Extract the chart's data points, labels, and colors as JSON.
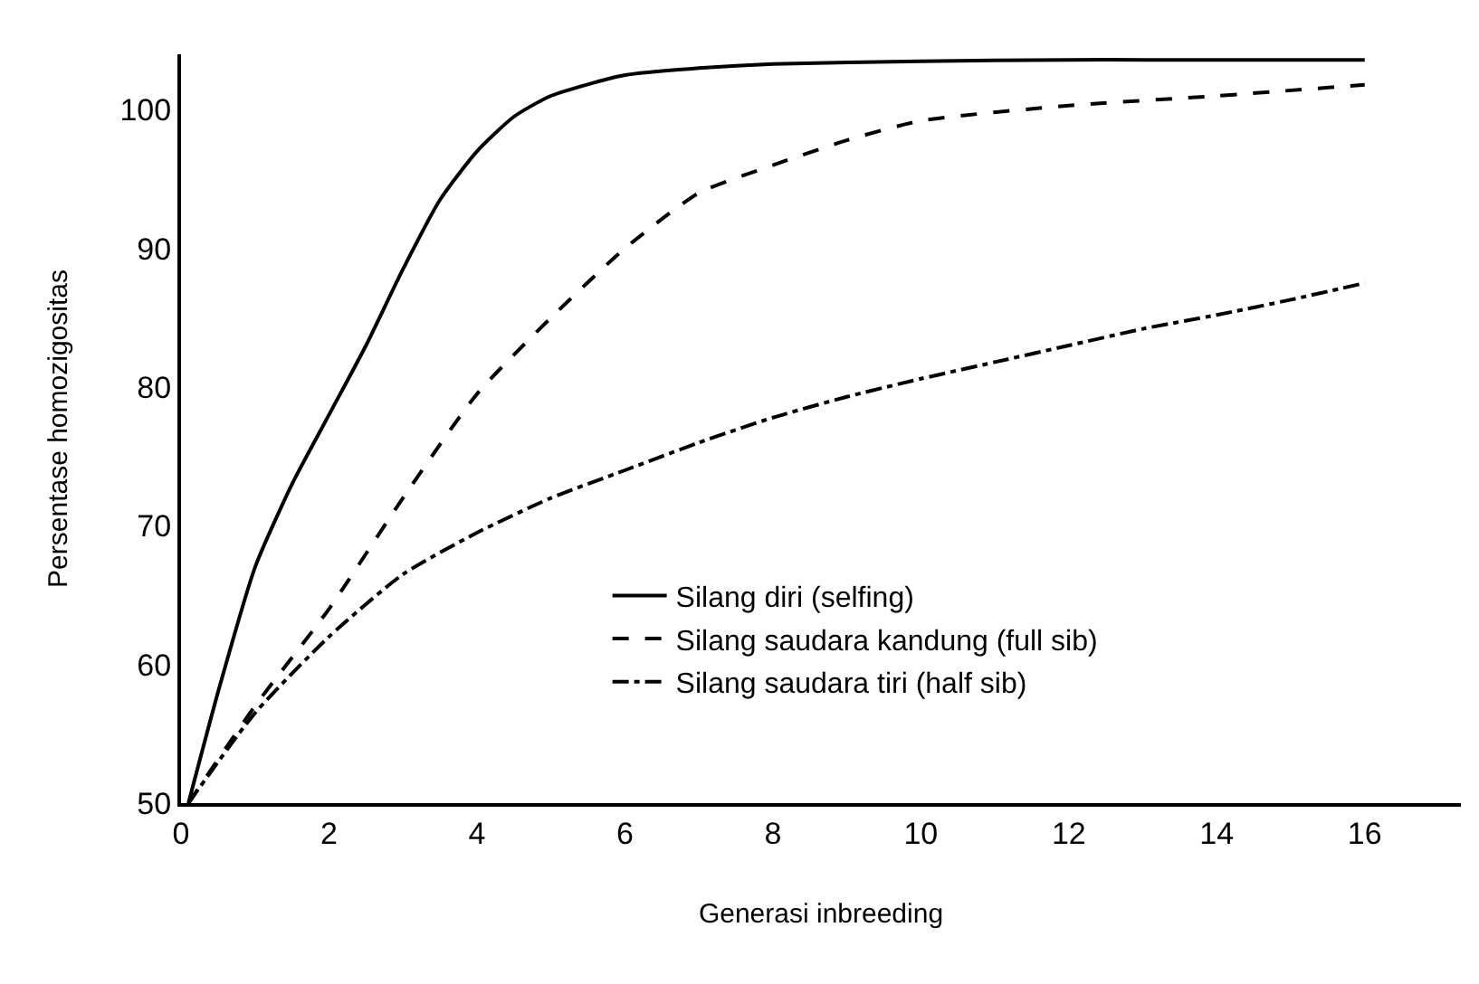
{
  "chart_data": {
    "type": "line",
    "xlabel": "Generasi inbreeding",
    "ylabel": "Persentase homozigositas",
    "xlim": [
      0,
      17.3
    ],
    "xticks": [
      0,
      2,
      4,
      6,
      8,
      10,
      12,
      14,
      16
    ],
    "ylim": [
      50,
      104
    ],
    "yticks": [
      50,
      60,
      70,
      80,
      90,
      100
    ],
    "grid": false,
    "legend": "bottom right",
    "series": [
      {
        "name": "Silang diri (selfing)",
        "color": "#000000",
        "line_style": "solid",
        "x": [
          0.1,
          0.5,
          1,
          1.5,
          2,
          2.5,
          3,
          3.5,
          4,
          4.5,
          5,
          6,
          7,
          8,
          10,
          12,
          13,
          16
        ],
        "values": [
          50,
          58,
          67,
          73,
          78,
          83,
          88.5,
          93.5,
          97,
          99.5,
          101,
          102.5,
          103,
          103.3,
          103.5,
          103.6,
          103.6,
          103.6
        ]
      },
      {
        "name": "Silang saudara kandung (full sib)",
        "color": "#000000",
        "line_style": "dashed",
        "x": [
          0.1,
          1,
          2,
          3,
          4,
          5,
          6,
          7,
          8,
          9,
          10,
          12,
          14,
          16
        ],
        "values": [
          50,
          57,
          64,
          72,
          79.5,
          85,
          90,
          94,
          96,
          97.8,
          99.2,
          100.3,
          101,
          101.8
        ]
      },
      {
        "name": "Silang saudara tiri (half sib)",
        "color": "#000000",
        "line_style": "dashdot",
        "x": [
          0.1,
          1,
          2,
          3,
          4,
          5,
          6,
          7,
          8,
          9,
          10,
          11,
          12,
          13,
          14,
          15,
          16
        ],
        "values": [
          50,
          56.5,
          62,
          66.5,
          69.5,
          72,
          74,
          76,
          77.8,
          79.3,
          80.6,
          81.8,
          83,
          84.2,
          85.2,
          86.3,
          87.5
        ]
      }
    ]
  }
}
